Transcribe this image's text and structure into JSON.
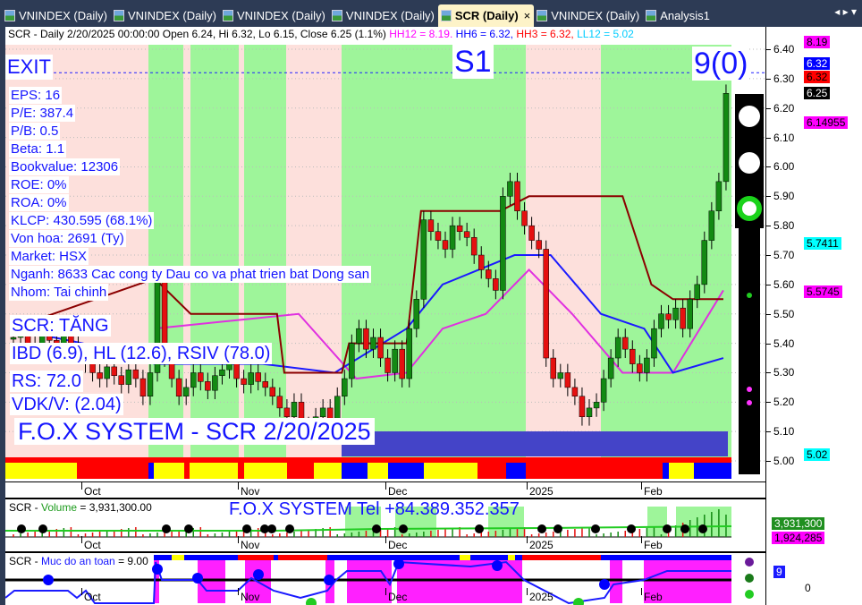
{
  "tabs": [
    {
      "label": "VNINDEX (Daily)",
      "active": false
    },
    {
      "label": "VNINDEX (Daily)",
      "active": false
    },
    {
      "label": "VNINDEX (Daily)",
      "active": false
    },
    {
      "label": "VNINDEX (Daily)",
      "active": false
    },
    {
      "label": "SCR (Daily)",
      "active": true,
      "close": "×"
    },
    {
      "label": "VNINDEX (Daily)",
      "active": false
    },
    {
      "label": "Analysis1",
      "active": false
    }
  ],
  "nav": "◂ ▸ ▾",
  "header": {
    "base": "SCR - Daily 2/20/2025 00:00:00 Open 6.24, Hi 6.32, Lo 6.15, Close 6.25 (1.1%) ",
    "hh12": "HH12 = 8.19.",
    "hh6": " HH6 = 6.32,",
    "hh3": " HH3 = 6.32,",
    "ll12": " LL12 = 5.02",
    "colors": {
      "hh12": "#ff00ff",
      "hh6": "#0000ff",
      "hh3": "#ff0000",
      "ll12": "#00e5ff"
    }
  },
  "overlay": {
    "exit": "EXIT",
    "s1": "S1",
    "signal": "9(0)",
    "fundamentals": [
      "EPS: 16",
      "P/E: 387.4",
      "P/B: 0.5",
      "Beta: 1.1",
      "Bookvalue: 12306",
      "ROE: 0%",
      "ROA: 0%",
      "KLCP: 430.595 (68.1%)",
      "Von hoa: 2691 (Ty)",
      "Market: HSX",
      "Nganh: 8633 Cac cong ty Dau co va phat trien bat Dong san",
      "Nhom: Tai chinh"
    ],
    "trend": "SCR: TĂNG",
    "ratings": "IBD (6.9), HL (12.6), RSIV (78.0)",
    "rs": "RS: 72.0",
    "vdk": "VDK/V:  (2.04)",
    "brand": "F.O.X SYSTEM - SCR 2/20/2025"
  },
  "axis": {
    "ticks": [
      "6.40",
      "6.30",
      "6.20",
      "6.10",
      "6.00",
      "5.90",
      "5.80",
      "5.70",
      "5.60",
      "5.50",
      "5.40",
      "5.30",
      "5.20",
      "5.10",
      "5.00"
    ],
    "labels": [
      {
        "text": "8.19",
        "bg": "#ff00ff",
        "fg": "#000",
        "price": 6.425
      },
      {
        "text": "6.32",
        "bg": "#0000ff",
        "fg": "#fff",
        "price": 6.35
      },
      {
        "text": "6.32",
        "bg": "#ff0000",
        "fg": "#000",
        "price": 6.31
      },
      {
        "text": "6.25",
        "bg": "#000000",
        "fg": "#fff",
        "price": 6.25
      },
      {
        "text": "6.14955",
        "bg": "#ff00ff",
        "fg": "#000",
        "price": 6.15
      },
      {
        "text": "5.7411",
        "bg": "#00ffff",
        "fg": "#000",
        "price": 5.7411
      },
      {
        "text": "5.5745",
        "bg": "#ff00ff",
        "fg": "#000",
        "price": 5.5745
      },
      {
        "text": "5.02",
        "bg": "#00ffff",
        "fg": "#000",
        "price": 5.02
      }
    ],
    "volume": [
      {
        "text": "3,931,300",
        "bg": "#1f8f1f",
        "fg": "#fff"
      },
      {
        "text": "1,924,285",
        "bg": "#ff00ff",
        "fg": "#000"
      }
    ],
    "safety": {
      "text": "9",
      "zero": "0"
    }
  },
  "xaxis": [
    "Oct",
    "Nov",
    "Dec",
    "2025",
    "Feb"
  ],
  "volume_panel": {
    "title_sym": "SCR - ",
    "title_name": "Volume",
    "title_val": " = 3,931,300.00",
    "banner": "F.O.X SYSTEM Tel +84.389.352.357"
  },
  "safety_panel": {
    "title_sym": "SCR - ",
    "title_name": "Muc do an toan",
    "title_val": " = 9.00"
  },
  "chart_data": {
    "type": "candlestick",
    "symbol": "SCR",
    "ylim": [
      5.0,
      6.4
    ],
    "close": [
      5.42,
      5.45,
      5.4,
      5.38,
      5.44,
      5.41,
      5.39,
      5.43,
      5.4,
      5.36,
      5.33,
      5.3,
      5.28,
      5.32,
      5.29,
      5.26,
      5.31,
      5.28,
      5.22,
      5.3,
      5.62,
      5.35,
      5.28,
      5.22,
      5.25,
      5.3,
      5.27,
      5.24,
      5.29,
      5.31,
      5.33,
      5.28,
      5.26,
      5.3,
      5.27,
      5.25,
      5.22,
      5.18,
      5.15,
      5.2,
      5.12,
      5.1,
      5.15,
      5.18,
      5.12,
      5.22,
      5.28,
      5.4,
      5.45,
      5.38,
      5.42,
      5.35,
      5.3,
      5.38,
      5.28,
      5.45,
      5.55,
      5.82,
      5.78,
      5.75,
      5.72,
      5.8,
      5.78,
      5.76,
      5.7,
      5.65,
      5.62,
      5.58,
      5.9,
      5.95,
      5.85,
      5.8,
      5.75,
      5.72,
      5.35,
      5.28,
      5.3,
      5.25,
      5.22,
      5.15,
      5.18,
      5.2,
      5.28,
      5.35,
      5.42,
      5.38,
      5.33,
      5.3,
      5.35,
      5.45,
      5.5,
      5.48,
      5.52,
      5.45,
      5.55,
      5.6,
      5.75,
      5.85,
      5.95,
      6.25
    ],
    "stop_line": [
      [
        0,
        5.45
      ],
      [
        20,
        5.62
      ],
      [
        25,
        5.5
      ],
      [
        37,
        5.5
      ],
      [
        38,
        5.3
      ],
      [
        46,
        5.3
      ],
      [
        47,
        5.4
      ],
      [
        55,
        5.4
      ],
      [
        57,
        5.85
      ],
      [
        68,
        5.85
      ],
      [
        72,
        5.9
      ],
      [
        85,
        5.9
      ],
      [
        89,
        5.6
      ],
      [
        92,
        5.55
      ],
      [
        99,
        5.55
      ]
    ],
    "blue_line": [
      [
        0,
        5.45
      ],
      [
        10,
        5.4
      ],
      [
        20,
        5.33
      ],
      [
        35,
        5.33
      ],
      [
        45,
        5.3
      ],
      [
        55,
        5.45
      ],
      [
        60,
        5.6
      ],
      [
        70,
        5.7
      ],
      [
        75,
        5.7
      ],
      [
        82,
        5.5
      ],
      [
        88,
        5.45
      ],
      [
        92,
        5.3
      ],
      [
        99,
        5.35
      ]
    ],
    "magenta_line": [
      [
        20,
        5.45
      ],
      [
        40,
        5.5
      ],
      [
        48,
        5.28
      ],
      [
        55,
        5.3
      ],
      [
        60,
        5.45
      ],
      [
        66,
        5.5
      ],
      [
        72,
        5.65
      ],
      [
        78,
        5.5
      ],
      [
        85,
        5.3
      ],
      [
        92,
        5.3
      ],
      [
        99,
        5.58
      ]
    ]
  }
}
